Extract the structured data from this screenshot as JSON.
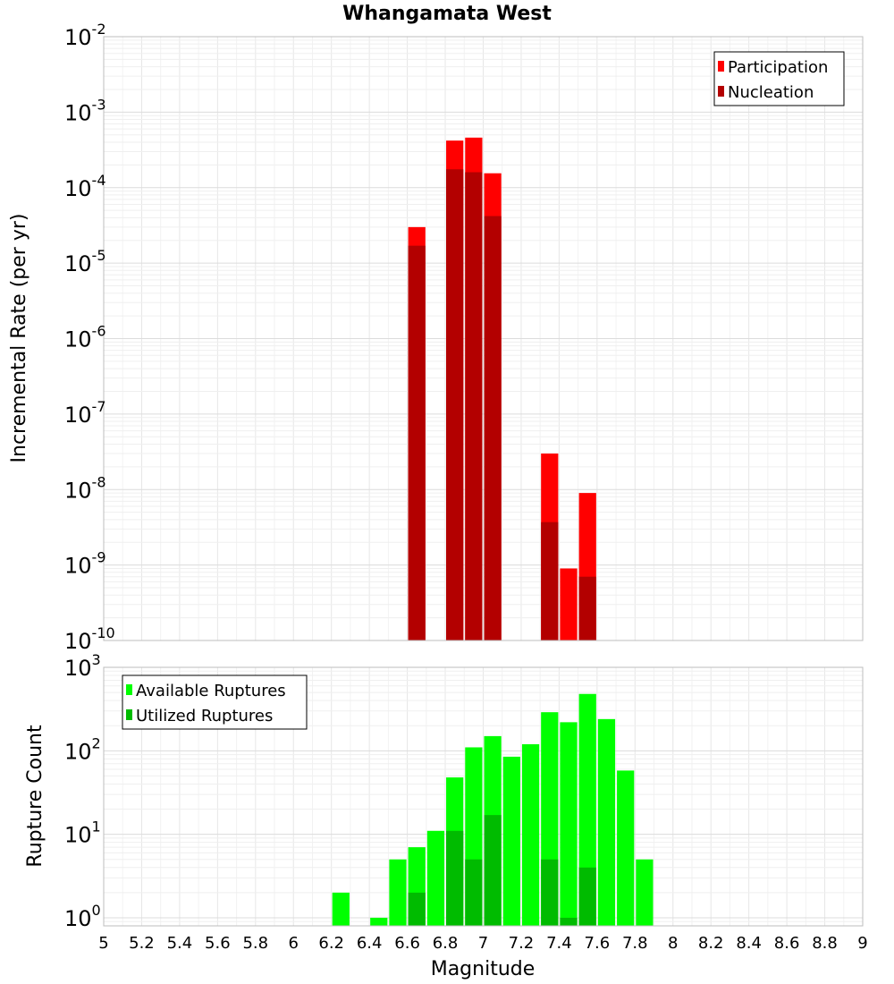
{
  "title": "Whangamata West",
  "chart_data": [
    {
      "type": "bar",
      "ylabel": "Incremental Rate (per yr)",
      "xlabel": "",
      "yscale": "log",
      "ylim": [
        1e-10,
        0.01
      ],
      "xlim": [
        5,
        9
      ],
      "grid": true,
      "legend_placement": "top-right",
      "yticks": [
        "10^-10",
        "10^-9",
        "10^-8",
        "10^-7",
        "10^-6",
        "10^-5",
        "10^-4",
        "10^-3",
        "10^-2"
      ],
      "bar_width": 0.1,
      "series": [
        {
          "name": "Participation",
          "color": "#ff0000",
          "x": [
            6.65,
            6.85,
            6.95,
            7.05,
            7.35,
            7.45,
            7.55
          ],
          "values": [
            3e-05,
            0.00042,
            0.00046,
            0.000155,
            3e-08,
            9e-10,
            9e-09
          ]
        },
        {
          "name": "Nucleation",
          "color": "#b30000",
          "x": [
            6.65,
            6.85,
            6.95,
            7.05,
            7.35,
            7.55
          ],
          "values": [
            1.7e-05,
            0.000175,
            0.00016,
            4.2e-05,
            3.7e-09,
            7e-10
          ]
        }
      ]
    },
    {
      "type": "bar",
      "ylabel": "Rupture Count",
      "xlabel": "Magnitude",
      "yscale": "log",
      "ylim": [
        0.8,
        1000
      ],
      "xlim": [
        5,
        9
      ],
      "grid": true,
      "legend_placement": "top-left",
      "xticks": [
        "5",
        "5.2",
        "5.4",
        "5.6",
        "5.8",
        "6",
        "6.2",
        "6.4",
        "6.6",
        "6.8",
        "7",
        "7.2",
        "7.4",
        "7.6",
        "7.8",
        "8",
        "8.2",
        "8.4",
        "8.6",
        "8.8",
        "9"
      ],
      "yticks": [
        "10^0",
        "10^1",
        "10^2",
        "10^3"
      ],
      "bar_width": 0.1,
      "series": [
        {
          "name": "Available Ruptures",
          "color": "#00ff00",
          "x": [
            6.25,
            6.45,
            6.55,
            6.65,
            6.75,
            6.85,
            6.95,
            7.05,
            7.15,
            7.25,
            7.35,
            7.45,
            7.55,
            7.65,
            7.75,
            7.85
          ],
          "values": [
            2,
            1,
            5,
            7,
            11,
            48,
            110,
            150,
            85,
            120,
            290,
            220,
            480,
            240,
            58,
            5
          ]
        },
        {
          "name": "Utilized Ruptures",
          "color": "#00bb00",
          "x": [
            6.65,
            6.85,
            6.95,
            7.05,
            7.35,
            7.45,
            7.55
          ],
          "values": [
            2,
            11,
            5,
            17,
            5,
            1,
            4
          ]
        }
      ]
    }
  ]
}
